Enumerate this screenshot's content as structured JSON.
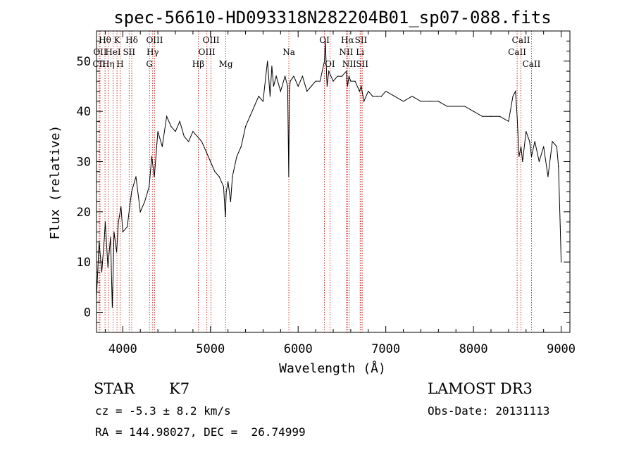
{
  "chart_data": {
    "type": "line",
    "title": "spec-56610-HD093318N282204B01_sp07-088.fits",
    "xlabel": "Wavelength (Å)",
    "ylabel": "Flux (relative)",
    "xlim": [
      3700,
      9100
    ],
    "ylim": [
      -4,
      56
    ],
    "xticks": [
      4000,
      5000,
      6000,
      7000,
      8000,
      9000
    ],
    "yticks": [
      0,
      10,
      20,
      30,
      40,
      50
    ],
    "series": [
      {
        "name": "flux",
        "x": [
          3700,
          3730,
          3760,
          3790,
          3800,
          3830,
          3860,
          3880,
          3900,
          3930,
          3950,
          3980,
          4000,
          4050,
          4100,
          4150,
          4200,
          4250,
          4300,
          4330,
          4360,
          4400,
          4450,
          4500,
          4550,
          4600,
          4650,
          4700,
          4750,
          4800,
          4850,
          4900,
          4950,
          5000,
          5050,
          5100,
          5150,
          5170,
          5180,
          5200,
          5230,
          5250,
          5300,
          5350,
          5400,
          5450,
          5500,
          5550,
          5600,
          5650,
          5680,
          5700,
          5720,
          5750,
          5800,
          5850,
          5880,
          5893,
          5900,
          5910,
          5950,
          6000,
          6050,
          6100,
          6150,
          6200,
          6250,
          6300,
          6310,
          6330,
          6350,
          6400,
          6450,
          6500,
          6550,
          6563,
          6580,
          6600,
          6650,
          6700,
          6720,
          6750,
          6800,
          6850,
          6900,
          6950,
          7000,
          7100,
          7200,
          7300,
          7400,
          7500,
          7600,
          7700,
          7800,
          7900,
          8000,
          8100,
          8200,
          8300,
          8400,
          8450,
          8480,
          8498,
          8520,
          8542,
          8560,
          8600,
          8640,
          8662,
          8700,
          8750,
          8800,
          8850,
          8900,
          8950,
          8970,
          8990,
          9000
        ],
        "values": [
          3,
          14,
          8,
          15,
          18,
          9,
          15,
          1,
          16,
          12,
          18,
          21,
          16,
          17,
          24,
          27,
          20,
          22,
          25,
          31,
          27,
          36,
          33,
          39,
          37,
          36,
          38,
          35,
          34,
          36,
          35,
          34,
          32,
          30,
          28,
          27,
          25,
          19,
          24,
          26,
          22,
          27,
          31,
          33,
          37,
          39,
          41,
          43,
          42,
          50,
          43,
          49,
          45,
          47,
          44,
          47,
          45,
          27,
          44,
          46,
          47,
          45,
          47,
          44,
          45,
          46,
          46,
          50,
          54,
          45,
          48,
          46,
          47,
          47,
          48,
          45,
          47,
          46,
          46,
          44,
          45,
          42,
          44,
          43,
          43,
          43,
          44,
          43,
          42,
          43,
          42,
          42,
          42,
          41,
          41,
          41,
          40,
          39,
          39,
          39,
          38,
          43,
          44,
          39,
          31,
          33,
          30,
          36,
          34,
          31,
          34,
          30,
          33,
          27,
          34,
          33,
          29,
          17,
          10
        ]
      }
    ],
    "lines": [
      {
        "label": "CII",
        "x": 3730,
        "row": 3
      },
      {
        "label": "OII",
        "x": 3740,
        "row": 2
      },
      {
        "label": "Hθ",
        "x": 3797,
        "row": 1
      },
      {
        "label": "Hη",
        "x": 3835,
        "row": 3
      },
      {
        "label": "HeI",
        "x": 3889,
        "row": 2
      },
      {
        "label": "K",
        "x": 3934,
        "row": 1
      },
      {
        "label": "H",
        "x": 3969,
        "row": 3
      },
      {
        "label": "SII",
        "x": 4072,
        "row": 2
      },
      {
        "label": "Hδ",
        "x": 4102,
        "row": 1
      },
      {
        "label": "G",
        "x": 4304,
        "row": 3
      },
      {
        "label": "Hγ",
        "x": 4341,
        "row": 2
      },
      {
        "label": "OIII",
        "x": 4363,
        "row": 1
      },
      {
        "label": "Hβ",
        "x": 4861,
        "row": 3
      },
      {
        "label": "OIII",
        "x": 4959,
        "row": 2
      },
      {
        "label": "OIII",
        "x": 5007,
        "row": 1
      },
      {
        "label": "Mg",
        "x": 5175,
        "row": 3
      },
      {
        "label": "Na",
        "x": 5894,
        "row": 2
      },
      {
        "label": "OI",
        "x": 6300,
        "row": 1
      },
      {
        "label": "OI",
        "x": 6363,
        "row": 3
      },
      {
        "label": "NII",
        "x": 6548,
        "row": 2
      },
      {
        "label": "Hα",
        "x": 6563,
        "row": 1
      },
      {
        "label": "NII",
        "x": 6583,
        "row": 3
      },
      {
        "label": "Li",
        "x": 6707,
        "row": 2
      },
      {
        "label": "SII",
        "x": 6717,
        "row": 1
      },
      {
        "label": "SII",
        "x": 6731,
        "row": 3
      },
      {
        "label": "CaII",
        "x": 8498,
        "row": 2
      },
      {
        "label": "CaII",
        "x": 8542,
        "row": 1
      },
      {
        "label": "CaII",
        "x": 8662,
        "row": 3
      }
    ]
  },
  "info": {
    "object_type": "STAR",
    "subclass": "K7",
    "survey": "LAMOST DR3",
    "cz": "cz = -5.3 ± 8.2 km/s",
    "obs_date": "Obs-Date: 20131113",
    "coords": "RA = 144.98027, DEC =  26.74999"
  }
}
